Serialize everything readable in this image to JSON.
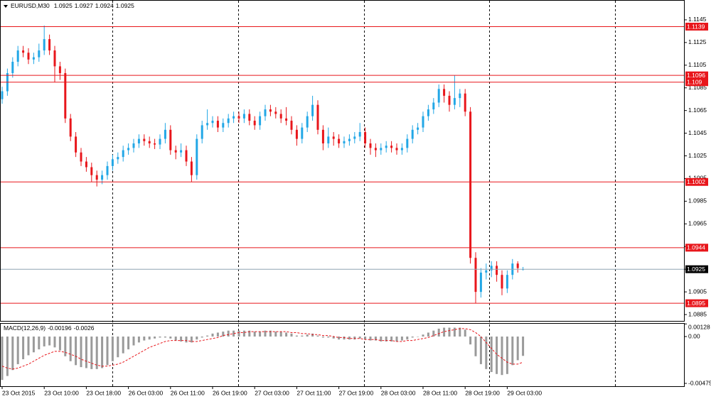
{
  "chart_data": {
    "type": "candlestick",
    "symbol": "EURUSD,M30",
    "open": [
      1.1075,
      1.1082,
      1.1098,
      1.1108,
      1.1118,
      1.1116,
      1.111,
      1.1112,
      1.1118,
      1.1128,
      1.1118,
      1.1104,
      1.1098,
      1.1058,
      1.1042,
      1.1028,
      1.102,
      1.1015,
      1.1008,
      1.1004,
      1.1008,
      1.1016,
      1.1022,
      1.1024,
      1.103,
      1.1032,
      1.1036,
      1.104,
      1.1038,
      1.1036,
      1.1035,
      1.104,
      1.1048,
      1.103,
      1.1028,
      1.103,
      1.102,
      1.1008,
      1.104,
      1.1052,
      1.1054,
      1.1056,
      1.105,
      1.1054,
      1.1058,
      1.106,
      1.1058,
      1.1062,
      1.1056,
      1.1052,
      1.106,
      1.1066,
      1.1064,
      1.1062,
      1.1058,
      1.1056,
      1.1048,
      1.104,
      1.105,
      1.106,
      1.107,
      1.1048,
      1.1036,
      1.1042,
      1.104,
      1.1036,
      1.1038,
      1.104,
      1.1042,
      1.1046,
      1.1036,
      1.1032,
      1.103,
      1.1032,
      1.1034,
      1.1032,
      1.103,
      1.1032,
      1.104,
      1.1048,
      1.105,
      1.106,
      1.1066,
      1.1072,
      1.1084,
      1.1078,
      1.107,
      1.1076,
      1.108,
      1.1064,
      1.0935,
      1.0905,
      1.0922,
      1.0924,
      1.0928,
      1.092,
      1.0908,
      1.092,
      1.093,
      1.0925
    ],
    "high": [
      1.1086,
      1.1102,
      1.1112,
      1.1122,
      1.1122,
      1.112,
      1.1116,
      1.1124,
      1.114,
      1.1132,
      1.1122,
      1.1108,
      1.1102,
      1.1062,
      1.1046,
      1.1032,
      1.1024,
      1.1019,
      1.1012,
      1.1012,
      1.102,
      1.1026,
      1.1028,
      1.1034,
      1.1036,
      1.104,
      1.1044,
      1.1044,
      1.1042,
      1.104,
      1.1044,
      1.1054,
      1.1052,
      1.1034,
      1.1036,
      1.1034,
      1.1024,
      1.1044,
      1.1056,
      1.1066,
      1.106,
      1.106,
      1.1058,
      1.1062,
      1.1064,
      1.1064,
      1.1066,
      1.1066,
      1.106,
      1.1064,
      1.107,
      1.107,
      1.1068,
      1.1066,
      1.1068,
      1.106,
      1.1052,
      1.1054,
      1.1064,
      1.1078,
      1.1074,
      1.1052,
      1.105,
      1.1046,
      1.1044,
      1.1042,
      1.1044,
      1.1046,
      1.1054,
      1.105,
      1.104,
      1.1036,
      1.1036,
      1.1038,
      1.1038,
      1.1036,
      1.1036,
      1.1044,
      1.1052,
      1.1054,
      1.1064,
      1.107,
      1.1076,
      1.1088,
      1.1088,
      1.1082,
      1.1096,
      1.1084,
      1.1084,
      1.1068,
      1.094,
      1.0926,
      1.093,
      1.0932,
      1.0932,
      1.0924,
      1.0924,
      1.0934,
      1.0932,
      1.0927
    ],
    "low": [
      1.1071,
      1.1078,
      1.1094,
      1.1104,
      1.1112,
      1.1106,
      1.1106,
      1.1108,
      1.1114,
      1.1114,
      1.109,
      1.1092,
      1.1054,
      1.1038,
      1.1024,
      1.1016,
      1.1011,
      1.1002,
      1.0998,
      1.1,
      1.1004,
      1.1012,
      1.1018,
      1.102,
      1.1026,
      1.1028,
      1.1032,
      1.1034,
      1.1032,
      1.1031,
      1.1031,
      1.1036,
      1.1026,
      1.1022,
      1.1024,
      1.1016,
      1.1002,
      1.1004,
      1.1036,
      1.1048,
      1.105,
      1.1046,
      1.1046,
      1.105,
      1.1054,
      1.1054,
      1.1054,
      1.1052,
      1.1048,
      1.1048,
      1.1056,
      1.106,
      1.1058,
      1.1054,
      1.1052,
      1.1044,
      1.1034,
      1.1036,
      1.1046,
      1.1056,
      1.1044,
      1.103,
      1.1032,
      1.1034,
      1.1032,
      1.1032,
      1.1034,
      1.1036,
      1.1038,
      1.1032,
      1.1026,
      1.1024,
      1.1026,
      1.1028,
      1.1028,
      1.1026,
      1.1026,
      1.1028,
      1.1036,
      1.1044,
      1.1046,
      1.1056,
      1.1062,
      1.1068,
      1.1072,
      1.1064,
      1.1066,
      1.1068,
      1.106,
      1.093,
      1.0895,
      1.09,
      1.0916,
      1.0918,
      1.0914,
      1.0902,
      1.0904,
      1.0916,
      1.0922,
      1.0924
    ],
    "close": [
      1.1082,
      1.1098,
      1.1108,
      1.1118,
      1.1116,
      1.111,
      1.1112,
      1.1118,
      1.1128,
      1.1118,
      1.1104,
      1.1098,
      1.1058,
      1.1042,
      1.1028,
      1.102,
      1.1015,
      1.1008,
      1.1004,
      1.1008,
      1.1016,
      1.1022,
      1.1024,
      1.103,
      1.1032,
      1.1036,
      1.104,
      1.1038,
      1.1036,
      1.1035,
      1.104,
      1.1048,
      1.103,
      1.1028,
      1.103,
      1.102,
      1.1008,
      1.104,
      1.1052,
      1.1054,
      1.1056,
      1.105,
      1.1054,
      1.1058,
      1.106,
      1.1058,
      1.1062,
      1.1056,
      1.1052,
      1.106,
      1.1066,
      1.1064,
      1.1062,
      1.1058,
      1.1056,
      1.1048,
      1.104,
      1.105,
      1.106,
      1.107,
      1.1048,
      1.1036,
      1.1042,
      1.104,
      1.1036,
      1.1038,
      1.104,
      1.1042,
      1.1046,
      1.1036,
      1.1032,
      1.103,
      1.1032,
      1.1034,
      1.1032,
      1.103,
      1.1032,
      1.104,
      1.1048,
      1.105,
      1.106,
      1.1066,
      1.1072,
      1.1084,
      1.1078,
      1.107,
      1.1076,
      1.108,
      1.1064,
      1.0935,
      1.0905,
      1.0922,
      1.0924,
      1.0928,
      1.092,
      1.0908,
      1.092,
      1.093,
      1.0926,
      1.0925
    ],
    "bull_color": "#22a7e6",
    "bear_color": "#e8161b",
    "ylim": [
      1.08794,
      1.11625
    ],
    "yticks": [
      1.1145,
      1.1125,
      1.1105,
      1.1085,
      1.1065,
      1.1045,
      1.1025,
      1.1005,
      1.0985,
      1.0965,
      1.0945,
      1.0925,
      1.0905,
      1.0885
    ],
    "levels": [
      {
        "value": 1.1139,
        "color": "#e8161b"
      },
      {
        "value": 1.1096,
        "color": "#e8161b"
      },
      {
        "value": 1.109,
        "color": "#e8161b"
      },
      {
        "value": 1.1002,
        "color": "#e8161b"
      },
      {
        "value": 1.0944,
        "color": "#e8161b"
      },
      {
        "value": 1.0895,
        "color": "#e8161b"
      }
    ],
    "price_line_color": "#8fa3b3",
    "x_labels": [
      "23 Oct 2015",
      "23 Oct 10:00",
      "23 Oct 18:00",
      "26 Oct 03:00",
      "26 Oct 11:00",
      "26 Oct 19:00",
      "27 Oct 03:00",
      "27 Oct 11:00",
      "27 Oct 19:00",
      "28 Oct 03:00",
      "28 Oct 11:00",
      "28 Oct 19:00",
      "29 Oct 03:00"
    ],
    "indicator": {
      "label": "MACD(12,26,9)",
      "histogram_color": "#9a9a9a",
      "signal_color": "#e8161b",
      "y2lim": [
        -0.00511,
        0.00137
      ],
      "y2ticks": [
        0.00128,
        {
          "value": 0,
          "label": "0.00"
        },
        -0.00475
      ],
      "histogram": [
        -0.0044,
        -0.004,
        -0.0034,
        -0.0028,
        -0.0023,
        -0.0019,
        -0.0016,
        -0.0013,
        -0.001,
        -0.0009,
        -0.0011,
        -0.0014,
        -0.002,
        -0.0025,
        -0.0029,
        -0.0031,
        -0.0032,
        -0.0033,
        -0.0033,
        -0.0032,
        -0.0029,
        -0.0025,
        -0.0021,
        -0.0017,
        -0.0013,
        -0.0009,
        -0.0006,
        -0.0004,
        -0.0003,
        -0.0002,
        -0.0001,
        -0.0001,
        -0.0002,
        -0.0004,
        -0.0005,
        -0.0006,
        -0.0006,
        -0.0003,
        -0.0001,
        0.0001,
        0.0003,
        0.0004,
        0.0005,
        0.0006,
        0.0006,
        0.0006,
        0.0006,
        0.0006,
        0.0005,
        0.0005,
        0.0006,
        0.0006,
        0.0005,
        0.0005,
        0.0004,
        0.0003,
        0.0001,
        0.0001,
        0.0002,
        0.0003,
        0.0001,
        -0.0001,
        -0.0001,
        -0.0002,
        -0.0003,
        -0.0003,
        -0.0003,
        -0.0003,
        -0.0002,
        -0.0003,
        -0.0004,
        -0.0004,
        -0.0005,
        -0.0005,
        -0.0005,
        -0.0005,
        -0.0004,
        -0.0003,
        -0.0001,
        0.0,
        0.0002,
        0.0004,
        0.0006,
        0.0008,
        0.0009,
        0.0009,
        0.0009,
        0.0009,
        0.0007,
        -0.0008,
        -0.002,
        -0.0028,
        -0.0033,
        -0.0036,
        -0.0038,
        -0.0039,
        -0.0038,
        -0.0029,
        -0.0024,
        -0.00196
      ],
      "signal": [
        -0.003,
        -0.0032,
        -0.0033,
        -0.0032,
        -0.003,
        -0.0028,
        -0.0025,
        -0.0022,
        -0.0019,
        -0.0017,
        -0.0015,
        -0.0015,
        -0.0016,
        -0.0018,
        -0.002,
        -0.0023,
        -0.0025,
        -0.0027,
        -0.0029,
        -0.003,
        -0.003,
        -0.0029,
        -0.0028,
        -0.0026,
        -0.0023,
        -0.002,
        -0.0017,
        -0.0014,
        -0.0011,
        -0.0009,
        -0.0007,
        -0.0005,
        -0.0004,
        -0.0004,
        -0.0004,
        -0.0004,
        -0.0005,
        -0.0005,
        -0.0004,
        -0.0003,
        -0.0002,
        -0.0001,
        0.0001,
        0.0002,
        0.0003,
        0.0004,
        0.0004,
        0.0005,
        0.0005,
        0.0005,
        0.0005,
        0.0005,
        0.0005,
        0.0005,
        0.0005,
        0.0004,
        0.0004,
        0.0003,
        0.0003,
        0.0002,
        0.0002,
        0.0001,
        0.0001,
        0.0,
        -0.0001,
        -0.0001,
        -0.0002,
        -0.0002,
        -0.0002,
        -0.0003,
        -0.0003,
        -0.0003,
        -0.0004,
        -0.0004,
        -0.0004,
        -0.0005,
        -0.0005,
        -0.0004,
        -0.0004,
        -0.0003,
        -0.0002,
        -0.0001,
        0.0001,
        0.0003,
        0.0005,
        0.0006,
        0.0007,
        0.0008,
        0.0008,
        0.0007,
        0.0004,
        0.0,
        -0.0006,
        -0.0012,
        -0.0018,
        -0.0022,
        -0.0026,
        -0.0028,
        -0.0028,
        -0.0026
      ]
    }
  }
}
